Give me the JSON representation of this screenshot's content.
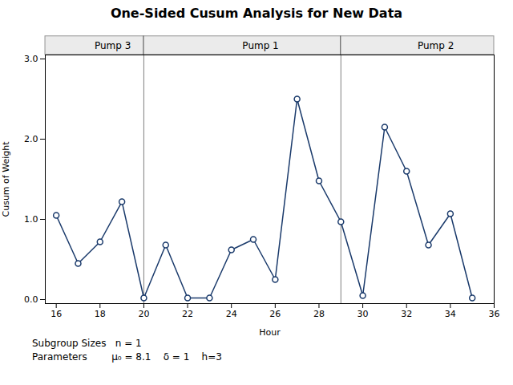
{
  "chart_data": {
    "type": "line",
    "title": "One-Sided Cusum Analysis for New Data",
    "xlabel": "Hour",
    "ylabel": "Cusum of Weight",
    "x": [
      16,
      17,
      18,
      19,
      20,
      21,
      22,
      23,
      24,
      25,
      26,
      27,
      28,
      29,
      30,
      31,
      32,
      33,
      34,
      35
    ],
    "values": [
      1.05,
      0.45,
      0.72,
      1.22,
      0.02,
      0.68,
      0.02,
      0.02,
      0.62,
      0.75,
      0.25,
      2.5,
      1.48,
      0.97,
      0.05,
      2.15,
      1.6,
      0.68,
      1.07,
      0.02
    ],
    "color": "#1a3a6b",
    "marker": "circle",
    "xlim": [
      15.5,
      36
    ],
    "ylim": [
      -0.05,
      3.05
    ],
    "xticks": [
      16,
      18,
      20,
      22,
      24,
      26,
      28,
      30,
      32,
      34,
      36
    ],
    "yticks": [
      0,
      1,
      2,
      3
    ],
    "grid": false,
    "pump_regions": [
      {
        "label": "Pump 3",
        "xstart": 15.5,
        "xend": 20
      },
      {
        "label": "Pump 1",
        "xstart": 20,
        "xend": 29
      },
      {
        "label": "Pump 2",
        "xstart": 29,
        "xend": 36
      }
    ],
    "vlines": [
      20,
      29
    ],
    "annotations": [
      "Subgroup Sizes   n = 1",
      "Parameters        μ₀ = 8.1    δ = 1    h=3"
    ]
  }
}
